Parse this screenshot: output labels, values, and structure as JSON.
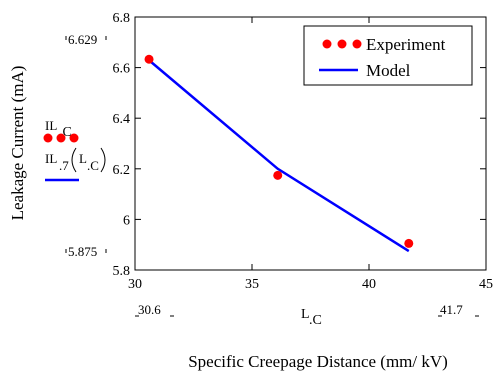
{
  "chart_data": {
    "type": "scatter",
    "xlabel": "Specific Creepage Distance (mm/ kV)",
    "ylabel": "Leakage Current (mA)",
    "xlim": [
      30,
      45
    ],
    "ylim": [
      5.8,
      6.8
    ],
    "x_ticks": [
      30,
      35,
      40,
      45
    ],
    "y_ticks": [
      "5.8",
      "6",
      "6.2",
      "6.4",
      "6.6",
      "6.8"
    ],
    "grid": false,
    "legend_position": "top-right",
    "series": [
      {
        "name": "Experiment",
        "kind": "markers",
        "color": "#ff0000",
        "x": [
          30.6,
          36.1,
          41.7
        ],
        "y": [
          6.633,
          6.174,
          5.905
        ]
      },
      {
        "name": "Model",
        "kind": "line",
        "color": "#0000ff",
        "x": [
          30.6,
          36.1,
          41.7
        ],
        "y": [
          6.629,
          6.2,
          5.875
        ]
      }
    ],
    "mathcad_annotations": {
      "y_range_top": "6.629",
      "y_range_bottom": "5.875",
      "x_range_left": "30.6",
      "x_range_right": "41.7",
      "x_variable": "L",
      "x_variable_sub": ".C",
      "exp_var": "IL",
      "exp_var_sub": ".C",
      "model_var": "IL",
      "model_var_sub": ".7",
      "model_arg": "L",
      "model_arg_sub": ".C"
    }
  }
}
